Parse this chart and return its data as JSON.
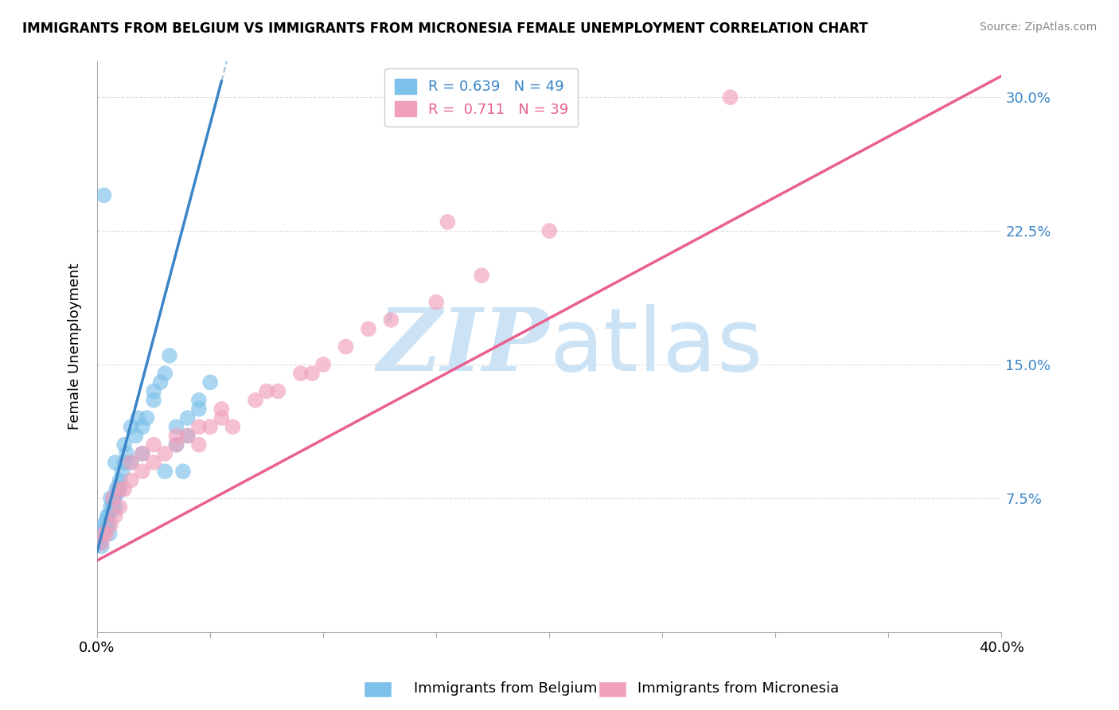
{
  "title": "IMMIGRANTS FROM BELGIUM VS IMMIGRANTS FROM MICRONESIA FEMALE UNEMPLOYMENT CORRELATION CHART",
  "source": "Source: ZipAtlas.com",
  "xlabel_blue": "Immigrants from Belgium",
  "xlabel_pink": "Immigrants from Micronesia",
  "ylabel": "Female Unemployment",
  "xlim": [
    0.0,
    40.0
  ],
  "ylim": [
    0.0,
    32.0
  ],
  "xticks": [
    0.0,
    5.0,
    10.0,
    15.0,
    20.0,
    25.0,
    30.0,
    35.0,
    40.0
  ],
  "xtick_labels_show": [
    0.0,
    40.0
  ],
  "yticks": [
    7.5,
    15.0,
    22.5,
    30.0
  ],
  "legend_blue_R": "0.639",
  "legend_blue_N": "49",
  "legend_pink_R": "0.711",
  "legend_pink_N": "39",
  "color_blue": "#7dc0ea",
  "color_pink": "#f0a0bb",
  "color_blue_line": "#3a85c8",
  "color_pink_line": "#e86090",
  "watermark_zip": "ZIP",
  "watermark_atlas": "atlas",
  "watermark_color": "#cce3f5",
  "blue_line_x0": 0.0,
  "blue_line_y0": 4.5,
  "blue_line_slope": 4.8,
  "blue_line_solid_end_x": 5.5,
  "pink_line_x0": 0.0,
  "pink_line_y0": 4.0,
  "pink_line_slope": 0.68,
  "blue_scatter_x": [
    0.1,
    0.15,
    0.2,
    0.25,
    0.3,
    0.35,
    0.4,
    0.45,
    0.5,
    0.55,
    0.6,
    0.65,
    0.7,
    0.75,
    0.8,
    0.85,
    0.9,
    0.95,
    1.0,
    1.1,
    1.2,
    1.3,
    1.5,
    1.7,
    2.0,
    2.2,
    2.5,
    2.8,
    3.0,
    3.2,
    3.5,
    3.8,
    4.0,
    4.5,
    5.0,
    0.3,
    0.5,
    0.8,
    1.0,
    1.2,
    1.5,
    2.0,
    2.5,
    3.0,
    3.5,
    4.0,
    4.5,
    1.8,
    0.6
  ],
  "blue_scatter_y": [
    5.0,
    5.2,
    4.8,
    5.5,
    6.0,
    5.8,
    6.2,
    6.5,
    6.0,
    5.5,
    7.0,
    6.8,
    7.2,
    7.5,
    7.0,
    8.0,
    7.8,
    8.2,
    8.5,
    9.0,
    9.5,
    10.0,
    9.5,
    11.0,
    11.5,
    12.0,
    13.0,
    14.0,
    14.5,
    15.5,
    10.5,
    9.0,
    11.0,
    12.5,
    14.0,
    24.5,
    6.5,
    9.5,
    8.0,
    10.5,
    11.5,
    10.0,
    13.5,
    9.0,
    11.5,
    12.0,
    13.0,
    12.0,
    7.5
  ],
  "pink_scatter_x": [
    0.2,
    0.4,
    0.6,
    0.8,
    1.0,
    1.2,
    1.5,
    2.0,
    2.5,
    3.0,
    3.5,
    4.0,
    4.5,
    5.0,
    5.5,
    6.0,
    7.0,
    8.0,
    9.0,
    10.0,
    11.0,
    13.0,
    15.0,
    17.0,
    20.0,
    28.0,
    0.3,
    0.7,
    1.0,
    1.5,
    2.0,
    2.5,
    3.5,
    4.5,
    5.5,
    7.5,
    9.5,
    12.0,
    15.5
  ],
  "pink_scatter_y": [
    5.0,
    5.5,
    6.0,
    6.5,
    7.0,
    8.0,
    8.5,
    9.0,
    9.5,
    10.0,
    10.5,
    11.0,
    10.5,
    11.5,
    12.0,
    11.5,
    13.0,
    13.5,
    14.5,
    15.0,
    16.0,
    17.5,
    18.5,
    20.0,
    22.5,
    30.0,
    5.5,
    7.5,
    8.0,
    9.5,
    10.0,
    10.5,
    11.0,
    11.5,
    12.5,
    13.5,
    14.5,
    17.0,
    23.0
  ]
}
